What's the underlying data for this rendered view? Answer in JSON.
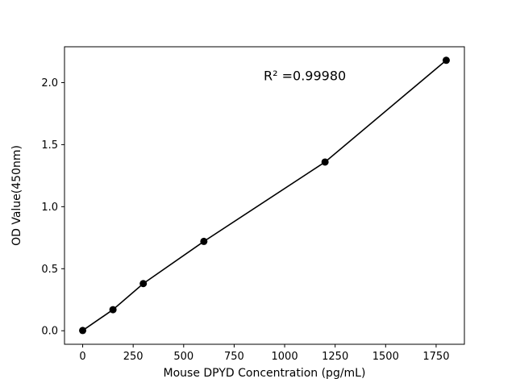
{
  "chart_data": {
    "type": "scatter",
    "title": "",
    "xlabel": "Mouse DPYD Concentration (pg/mL)",
    "ylabel": "OD Value(450nm)",
    "annotation": "R² =0.99980",
    "x": [
      0,
      150,
      300,
      600,
      1200,
      1800
    ],
    "y": [
      0.002,
      0.17,
      0.38,
      0.72,
      1.36,
      2.18
    ],
    "xticks": [
      0,
      250,
      500,
      750,
      1000,
      1250,
      1500,
      1750
    ],
    "xtick_labels": [
      "0",
      "250",
      "500",
      "750",
      "1000",
      "1250",
      "1500",
      "1750"
    ],
    "yticks": [
      0.0,
      0.5,
      1.0,
      1.5,
      2.0
    ],
    "ytick_labels": [
      "0.0",
      "0.5",
      "1.0",
      "1.5",
      "2.0"
    ],
    "xlim": [
      -90,
      1890
    ],
    "ylim": [
      -0.109,
      2.289
    ],
    "grid": false,
    "legend": null,
    "marker_color": "#000000",
    "line_color": "#000000",
    "background_color": "#ffffff",
    "annotation_position": {
      "x": 1100,
      "y": 2.02
    }
  }
}
